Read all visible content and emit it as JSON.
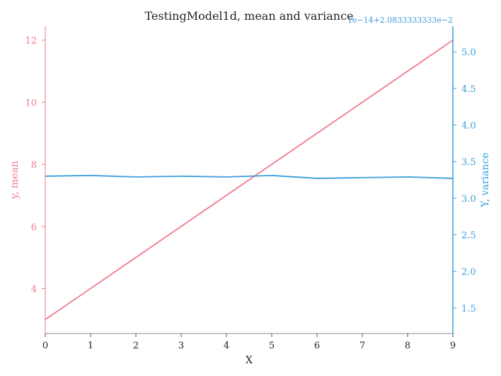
{
  "chart_data": {
    "type": "line",
    "title": "TestingModel1d, mean and variance",
    "xlabel": "X",
    "xlim": [
      0,
      9
    ],
    "xticks": [
      "0",
      "1",
      "2",
      "3",
      "4",
      "5",
      "6",
      "7",
      "8",
      "9"
    ],
    "left_axis": {
      "label": "y, mean",
      "color": "#f07a8a",
      "ylim": [
        2.55,
        12.45
      ],
      "ticks": [
        4,
        6,
        8,
        10,
        12
      ],
      "tick_labels": [
        "4",
        "6",
        "8",
        "10",
        "12"
      ]
    },
    "right_axis": {
      "label": "Y, variance",
      "color": "#3b9ddb",
      "offset_text": "1e−14+2.0833333333e−2",
      "ylim": [
        1.15,
        5.35
      ],
      "ticks": [
        1.5,
        2.0,
        2.5,
        3.0,
        3.5,
        4.0,
        4.5,
        5.0
      ],
      "tick_labels": [
        "1.5",
        "2.0",
        "2.5",
        "3.0",
        "3.5",
        "4.0",
        "4.5",
        "5.0"
      ]
    },
    "series": [
      {
        "axis": "left",
        "color": "#f07a8a",
        "x": [
          0,
          1,
          2,
          3,
          4,
          5,
          6,
          7,
          8,
          9
        ],
        "values": [
          3,
          4,
          5,
          6,
          7,
          8,
          9,
          10,
          11,
          12
        ]
      },
      {
        "axis": "right",
        "color": "#3b9ddb",
        "x": [
          0,
          1,
          2,
          3,
          4,
          5,
          6,
          7,
          8,
          9
        ],
        "values": [
          3.3,
          3.31,
          3.29,
          3.3,
          3.29,
          3.31,
          3.27,
          3.28,
          3.29,
          3.27
        ]
      }
    ]
  }
}
